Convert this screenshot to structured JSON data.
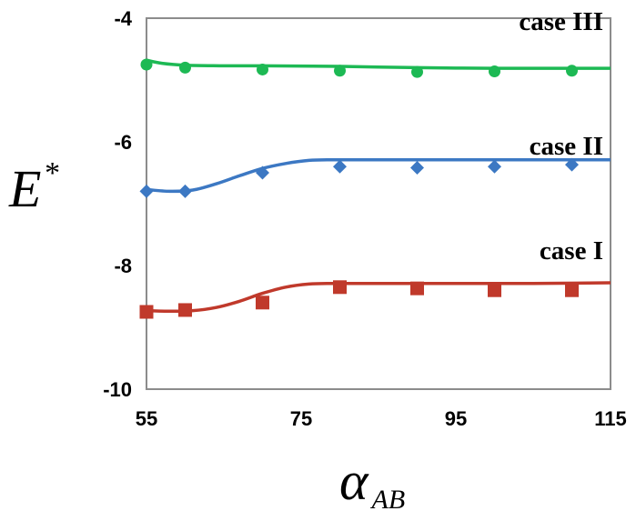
{
  "chart_data": {
    "type": "line",
    "xlabel": "α",
    "xlabel_sub": "AB",
    "ylabel": "E",
    "ylabel_sup": "*",
    "xlim": [
      55,
      115
    ],
    "ylim": [
      -10,
      -4
    ],
    "xticks": [
      55,
      75,
      95,
      115
    ],
    "yticks": [
      -4,
      -6,
      -8,
      -10
    ],
    "grid": false,
    "legend": "none",
    "series": [
      {
        "name": "case III",
        "color": "#1db954",
        "marker": "circle",
        "x": [
          55,
          60,
          70,
          80,
          90,
          100,
          110
        ],
        "y": [
          -4.75,
          -4.8,
          -4.83,
          -4.85,
          -4.87,
          -4.86,
          -4.85
        ],
        "fit_x": [
          55,
          57,
          60,
          65,
          70,
          80,
          90,
          100,
          110,
          115
        ],
        "fit_y": [
          -4.68,
          -4.73,
          -4.76,
          -4.77,
          -4.77,
          -4.78,
          -4.8,
          -4.81,
          -4.81,
          -4.81
        ]
      },
      {
        "name": "case II",
        "color": "#3c78c3",
        "marker": "diamond",
        "x": [
          55,
          60,
          70,
          80,
          90,
          100,
          110
        ],
        "y": [
          -6.8,
          -6.8,
          -6.5,
          -6.4,
          -6.42,
          -6.4,
          -6.37
        ],
        "fit_x": [
          55,
          58,
          61,
          64,
          67,
          70,
          73,
          76,
          79,
          85,
          95,
          105,
          115
        ],
        "fit_y": [
          -6.77,
          -6.8,
          -6.78,
          -6.68,
          -6.55,
          -6.43,
          -6.35,
          -6.3,
          -6.29,
          -6.29,
          -6.29,
          -6.29,
          -6.29
        ]
      },
      {
        "name": "case I",
        "color": "#c0392b",
        "marker": "square",
        "x": [
          55,
          60,
          70,
          80,
          90,
          100,
          110
        ],
        "y": [
          -8.75,
          -8.72,
          -8.6,
          -8.35,
          -8.37,
          -8.4,
          -8.4
        ],
        "fit_x": [
          55,
          58,
          61,
          64,
          67,
          70,
          73,
          76,
          79,
          85,
          95,
          105,
          115
        ],
        "fit_y": [
          -8.73,
          -8.74,
          -8.73,
          -8.68,
          -8.58,
          -8.45,
          -8.35,
          -8.3,
          -8.29,
          -8.29,
          -8.29,
          -8.29,
          -8.28
        ]
      }
    ]
  }
}
